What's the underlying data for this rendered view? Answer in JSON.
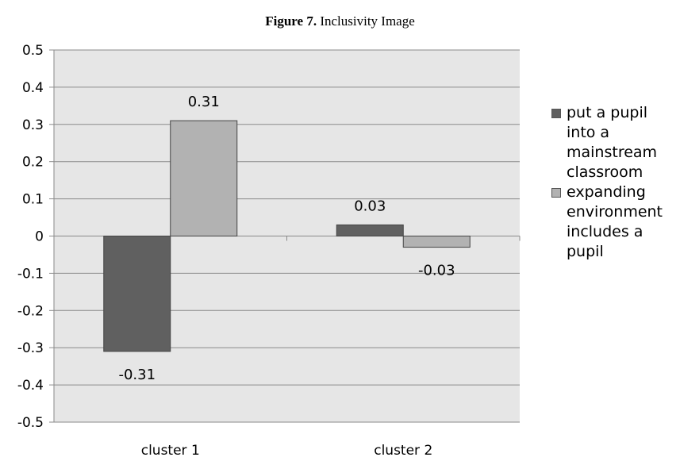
{
  "figure": {
    "label": "Figure 7.",
    "caption": "Inclusivity Image"
  },
  "chart_data": {
    "type": "bar",
    "title": "",
    "xlabel": "",
    "ylabel": "",
    "categories": [
      "cluster 1",
      "cluster 2"
    ],
    "series": [
      {
        "name": "put a pupil into a mainstream classroom",
        "values": [
          -0.31,
          0.03
        ],
        "labels": [
          "-0.31",
          "0.03"
        ],
        "color": "#606060"
      },
      {
        "name": "expanding environment includes a pupil",
        "values": [
          0.31,
          -0.03
        ],
        "labels": [
          "0.31",
          "-0.03"
        ],
        "color": "#b2b2b2"
      }
    ],
    "ylim": [
      -0.5,
      0.5
    ],
    "yticks": [
      -0.5,
      -0.4,
      -0.3,
      -0.2,
      -0.1,
      0,
      0.1,
      0.2,
      0.3,
      0.4,
      0.5
    ],
    "ytick_labels": [
      "-0.5",
      "-0.4",
      "-0.3",
      "-0.2",
      "-0.1",
      "0",
      "0.1",
      "0.2",
      "0.3",
      "0.4",
      "0.5"
    ],
    "grid": true,
    "plot_background": "#e6e6e6",
    "legend_position": "right"
  }
}
